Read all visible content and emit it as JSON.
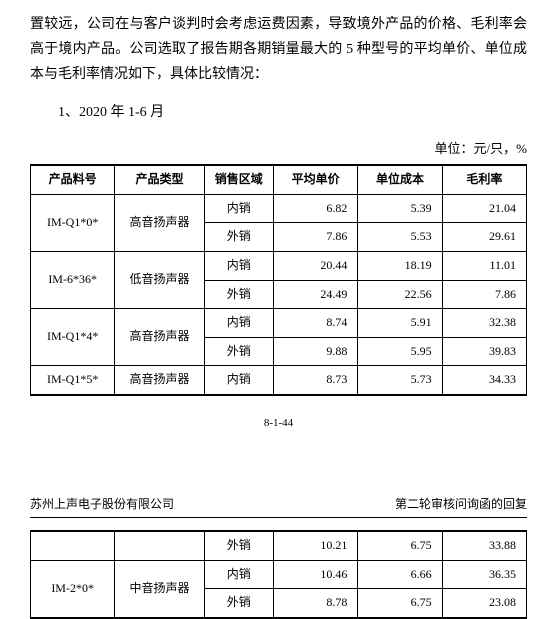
{
  "paragraph1": "置较远，公司在与客户谈判时会考虑运费因素，导致境外产品的价格、毛利率会高于境内产品。公司选取了报告期各期销量最大的 5 种型号的平均单价、单位成本与毛利率情况如下，具体比较情况：",
  "subsection_label": "1、2020 年 1-6 月",
  "unit_label": "单位：元/只，%",
  "headers": {
    "c1": "产品料号",
    "c2": "产品类型",
    "c3": "销售区域",
    "c4": "平均单价",
    "c5": "单位成本",
    "c6": "毛利率"
  },
  "rows1": [
    {
      "code": "IM-Q1*0*",
      "type": "高音扬声器",
      "rowspan": 2,
      "region": "内销",
      "avg": "6.82",
      "cost": "5.39",
      "margin": "21.04"
    },
    {
      "region": "外销",
      "avg": "7.86",
      "cost": "5.53",
      "margin": "29.61"
    },
    {
      "code": "IM-6*36*",
      "type": "低音扬声器",
      "rowspan": 2,
      "region": "内销",
      "avg": "20.44",
      "cost": "18.19",
      "margin": "11.01"
    },
    {
      "region": "外销",
      "avg": "24.49",
      "cost": "22.56",
      "margin": "7.86"
    },
    {
      "code": "IM-Q1*4*",
      "type": "高音扬声器",
      "rowspan": 2,
      "region": "内销",
      "avg": "8.74",
      "cost": "5.91",
      "margin": "32.38"
    },
    {
      "region": "外销",
      "avg": "9.88",
      "cost": "5.95",
      "margin": "39.83"
    },
    {
      "code": "IM-Q1*5*",
      "type": "高音扬声器",
      "rowspan": 1,
      "region": "内销",
      "avg": "8.73",
      "cost": "5.73",
      "margin": "34.33"
    }
  ],
  "page_number": "8-1-44",
  "footer_left": "苏州上声电子股份有限公司",
  "footer_right": "第二轮审核问询函的回复",
  "rows2": [
    {
      "code": "",
      "type": "",
      "rowspan": 1,
      "empty_lead": true,
      "region": "外销",
      "avg": "10.21",
      "cost": "6.75",
      "margin": "33.88"
    },
    {
      "code": "IM-2*0*",
      "type": "中音扬声器",
      "rowspan": 2,
      "region": "内销",
      "avg": "10.46",
      "cost": "6.66",
      "margin": "36.35"
    },
    {
      "region": "外销",
      "avg": "8.78",
      "cost": "6.75",
      "margin": "23.08"
    }
  ],
  "col_widths": [
    "17%",
    "18%",
    "14%",
    "17%",
    "17%",
    "17%"
  ]
}
